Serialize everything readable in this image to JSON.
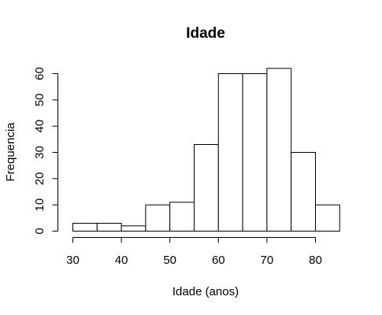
{
  "chart_data": {
    "type": "bar",
    "title": "Idade",
    "xlabel": "Idade (anos)",
    "ylabel": "Frequencia",
    "bins": [
      {
        "from": 30,
        "to": 35,
        "count": 3
      },
      {
        "from": 35,
        "to": 40,
        "count": 3
      },
      {
        "from": 40,
        "to": 45,
        "count": 2
      },
      {
        "from": 45,
        "to": 50,
        "count": 10
      },
      {
        "from": 50,
        "to": 55,
        "count": 11
      },
      {
        "from": 55,
        "to": 60,
        "count": 33
      },
      {
        "from": 60,
        "to": 65,
        "count": 60
      },
      {
        "from": 65,
        "to": 70,
        "count": 60
      },
      {
        "from": 70,
        "to": 75,
        "count": 62
      },
      {
        "from": 75,
        "to": 80,
        "count": 30
      },
      {
        "from": 80,
        "to": 85,
        "count": 10
      }
    ],
    "xticks": [
      "30",
      "40",
      "50",
      "60",
      "70",
      "80"
    ],
    "yticks": [
      "0",
      "10",
      "20",
      "30",
      "40",
      "50",
      "60"
    ],
    "xlim": [
      30,
      85
    ],
    "ylim": [
      0,
      60
    ],
    "grid": false,
    "legend": "none"
  }
}
